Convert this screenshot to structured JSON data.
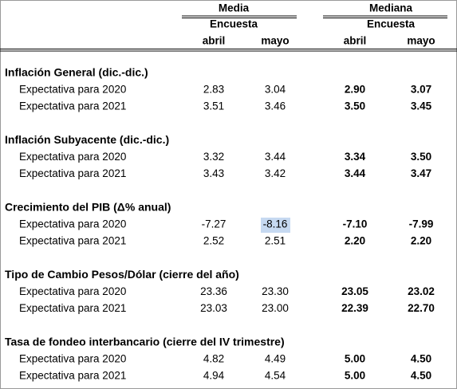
{
  "header": {
    "groups": [
      {
        "title": "Media",
        "subtitle": "Encuesta",
        "months": [
          "abril",
          "mayo"
        ]
      },
      {
        "title": "Mediana",
        "subtitle": "Encuesta",
        "months": [
          "abril",
          "mayo"
        ]
      }
    ]
  },
  "sections": [
    {
      "title": "Inflación General (dic.-dic.)",
      "rows": [
        {
          "label": "Expectativa para 2020",
          "values": [
            "2.83",
            "3.04",
            "2.90",
            "3.07"
          ]
        },
        {
          "label": "Expectativa para 2021",
          "values": [
            "3.51",
            "3.46",
            "3.50",
            "3.45"
          ]
        }
      ]
    },
    {
      "title": "Inflación Subyacente (dic.-dic.)",
      "rows": [
        {
          "label": "Expectativa para 2020",
          "values": [
            "3.32",
            "3.44",
            "3.34",
            "3.50"
          ]
        },
        {
          "label": "Expectativa para 2021",
          "values": [
            "3.43",
            "3.42",
            "3.44",
            "3.47"
          ]
        }
      ]
    },
    {
      "title": "Crecimiento del PIB (Δ% anual)",
      "rows": [
        {
          "label": "Expectativa para 2020",
          "values": [
            "-7.27",
            "-8.16",
            "-7.10",
            "-7.99"
          ]
        },
        {
          "label": "Expectativa para 2021",
          "values": [
            "2.52",
            "2.51",
            "2.20",
            "2.20"
          ]
        }
      ]
    },
    {
      "title": "Tipo de Cambio Pesos/Dólar (cierre del año)",
      "rows": [
        {
          "label": "Expectativa para 2020",
          "values": [
            "23.36",
            "23.30",
            "23.05",
            "23.02"
          ]
        },
        {
          "label": "Expectativa para 2021",
          "values": [
            "23.03",
            "23.00",
            "22.39",
            "22.70"
          ]
        }
      ]
    },
    {
      "title": "Tasa de fondeo interbancario (cierre del IV trimestre)",
      "rows": [
        {
          "label": "Expectativa para 2020",
          "values": [
            "4.82",
            "4.49",
            "5.00",
            "4.50"
          ]
        },
        {
          "label": "Expectativa para 2021",
          "values": [
            "4.94",
            "4.54",
            "5.00",
            "4.50"
          ]
        }
      ]
    }
  ]
}
